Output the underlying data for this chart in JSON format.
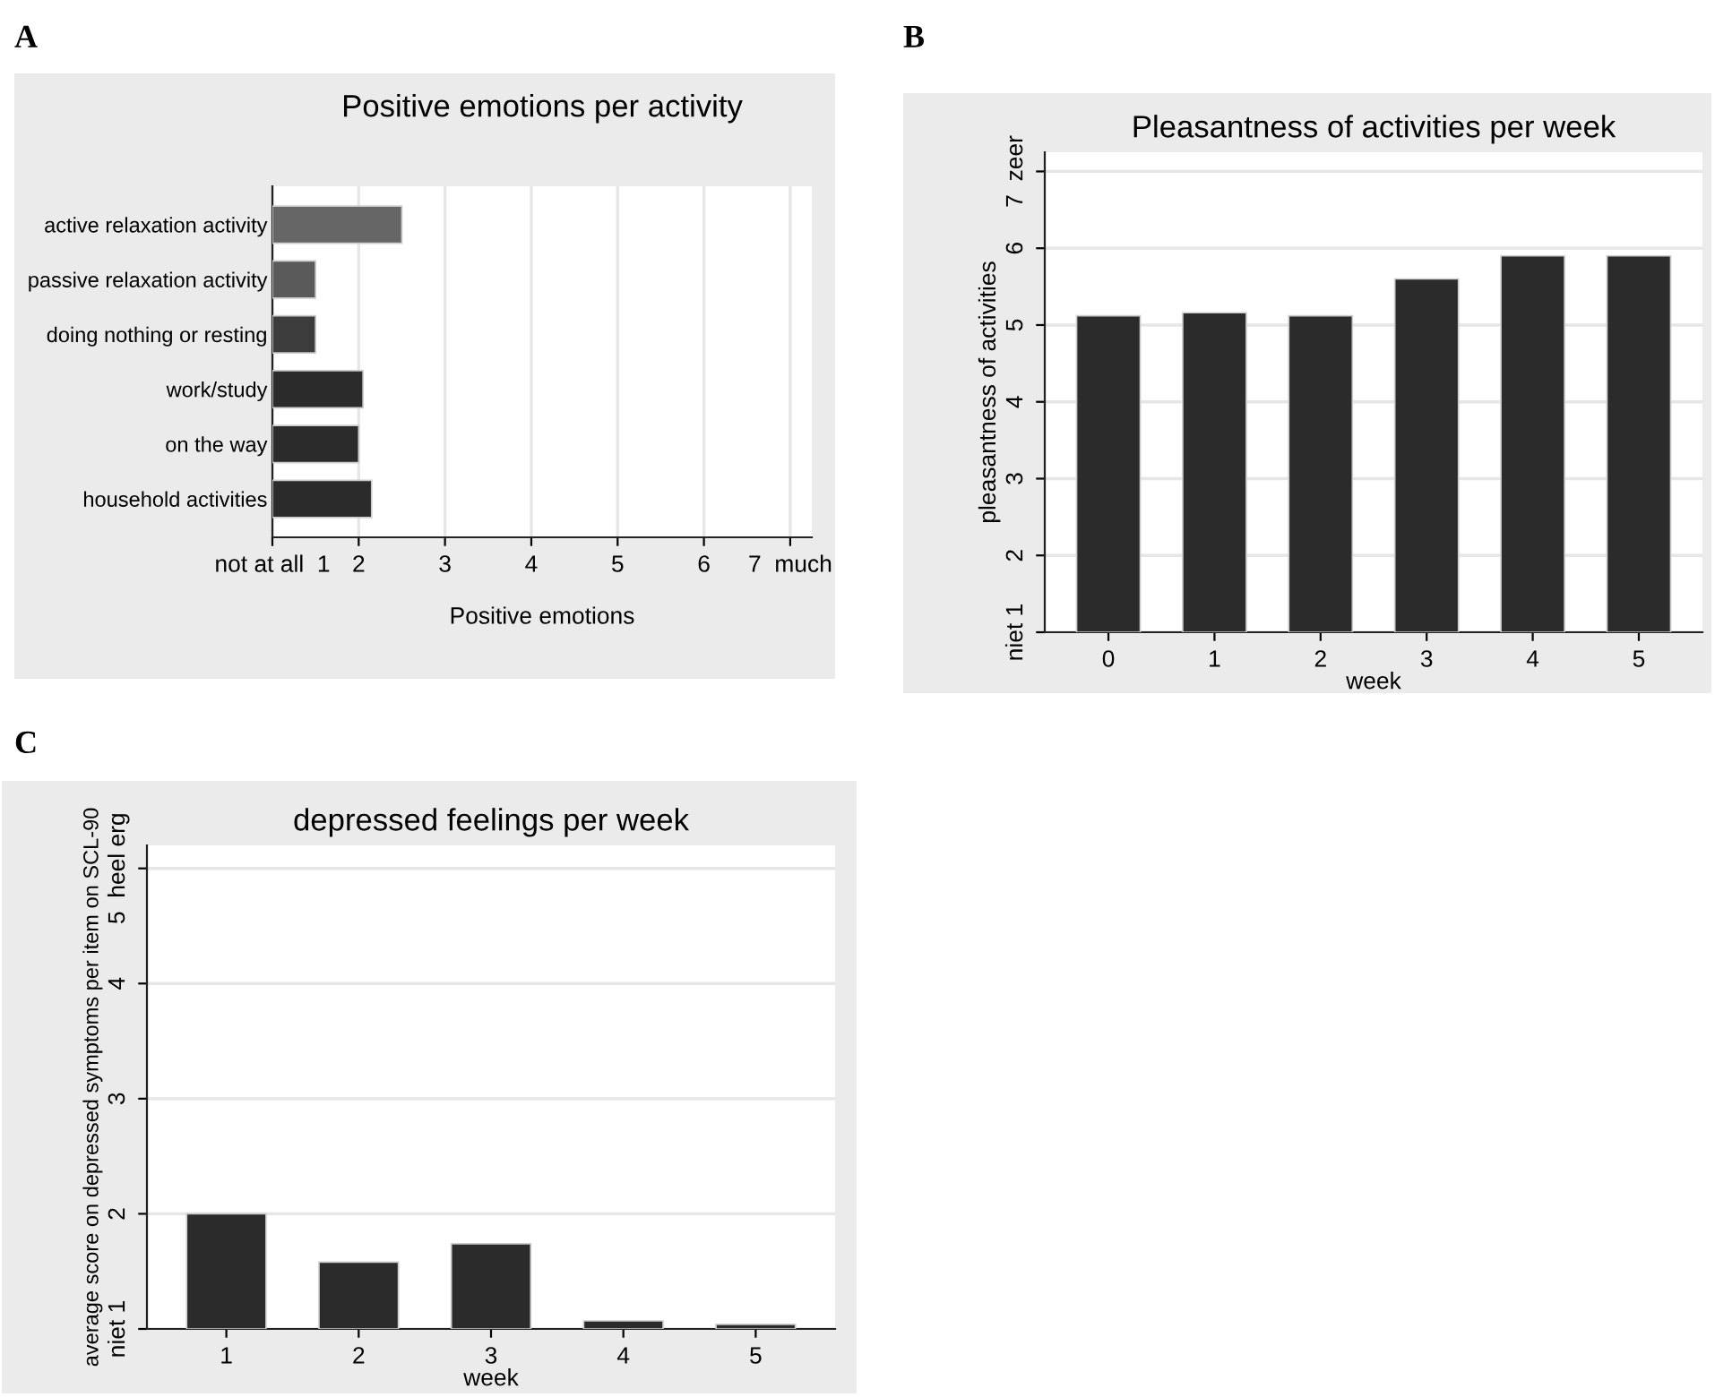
{
  "chart_data": [
    {
      "type": "bar",
      "orientation": "horizontal",
      "title": "Positive emotions per activity",
      "xlabel": "Positive emotions",
      "annotations": [
        "A"
      ],
      "categories": [
        "active relaxation activity",
        "passive relaxation activity",
        "doing nothing or resting",
        "work/study",
        "on the way",
        "household activities"
      ],
      "values": [
        2.5,
        1.5,
        1.5,
        2.05,
        2.0,
        2.15
      ],
      "colors": [
        "#666666",
        "#5a5a5a",
        "#3c3c3c",
        "#2b2b2b",
        "#2b2b2b",
        "#2b2b2b"
      ],
      "xlim": [
        1,
        7.25
      ],
      "xticks": [
        {
          "value": 1,
          "label": "not at all  1"
        },
        2,
        3,
        4,
        5,
        6,
        {
          "value": 7,
          "label": "7  much"
        }
      ],
      "grid": "x"
    },
    {
      "type": "bar",
      "title": "Pleasantness of activities per week",
      "xlabel": "week",
      "ylabel": "pleasantness of activities",
      "annotations": [
        "B"
      ],
      "categories": [
        "0",
        "1",
        "2",
        "3",
        "4",
        "5"
      ],
      "values": [
        5.12,
        5.16,
        5.12,
        5.6,
        5.9,
        5.9
      ],
      "color": "#2b2b2b",
      "ylim": [
        1,
        7.25
      ],
      "yticks": [
        {
          "value": 1,
          "label": "niet 1"
        },
        2,
        3,
        4,
        5,
        6,
        {
          "value": 7,
          "label": "7  zeer"
        }
      ],
      "grid": "y"
    },
    {
      "type": "bar",
      "title": "depressed feelings per week",
      "xlabel": "week",
      "ylabel": "average score on depressed symptoms per item on SCL-90",
      "annotations": [
        "C"
      ],
      "categories": [
        "1",
        "2",
        "3",
        "4",
        "5"
      ],
      "values": [
        2.0,
        1.58,
        1.74,
        1.07,
        1.04
      ],
      "color": "#2b2b2b",
      "ylim": [
        1,
        5.2
      ],
      "yticks": [
        {
          "value": 1,
          "label": "niet 1"
        },
        2,
        3,
        4,
        {
          "value": 5,
          "label": "5  heel erg"
        }
      ],
      "grid": "y"
    }
  ]
}
